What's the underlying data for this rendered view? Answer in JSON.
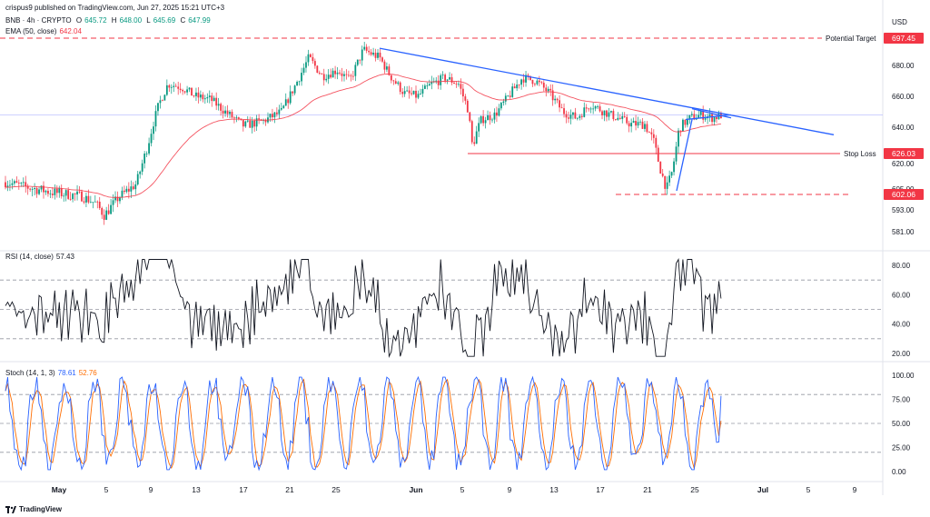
{
  "attribution": "crispus9 published on TradingView.com, Jun 27, 2025 15:21 UTC+3",
  "footer": {
    "brand": "TradingView"
  },
  "header": {
    "symbol": "BNB · 4h · CRYPTO",
    "o_label": "O",
    "o": "645.72",
    "h_label": "H",
    "h": "648.00",
    "l_label": "L",
    "l": "645.69",
    "c_label": "C",
    "c": "647.99",
    "ema_label": "EMA (50, close)",
    "ema_value": "642.04"
  },
  "rsi_header": {
    "label": "RSI (14, close)",
    "value": "57.43"
  },
  "stoch_header": {
    "label": "Stoch (14, 1, 3)",
    "k_value": "78.61",
    "d_value": "52.76"
  },
  "colors": {
    "up": "#089981",
    "down": "#f23645",
    "ema": "#f23645",
    "trendline": "#2962ff",
    "rsi": "#131722",
    "stoch_k": "#2962ff",
    "stoch_d": "#ff6d00",
    "level_red": "#f23645"
  },
  "chart_data": [
    {
      "type": "candlestick",
      "currency": "USD",
      "xlabels": [
        "May",
        "5",
        "9",
        "13",
        "17",
        "21",
        "25",
        "Jun",
        "5",
        "9",
        "13",
        "17",
        "21",
        "25",
        "Jul",
        "5",
        "9"
      ],
      "yticks": [
        "680.00",
        "660.00",
        "640.00",
        "620.00",
        "605.00",
        "593.00",
        "581.00"
      ],
      "levels": [
        {
          "label": "Potential Target",
          "value": "697.45",
          "style": "dashed"
        },
        {
          "label": "Stop Loss",
          "value": "626.03",
          "style": "solid"
        },
        {
          "label": "",
          "value": "602.06",
          "style": "dashed"
        }
      ],
      "current_price_line": 647.99,
      "ema_period": 50
    },
    {
      "type": "line",
      "name": "RSI (14, close)",
      "yticks": [
        "80.00",
        "60.00",
        "40.00",
        "20.00"
      ],
      "bands": [
        70,
        50,
        30
      ],
      "last": 57.43
    },
    {
      "type": "line",
      "name": "Stoch (14, 1, 3)",
      "yticks": [
        "100.00",
        "75.00",
        "50.00",
        "25.00",
        "0.00"
      ],
      "bands": [
        80,
        50,
        20
      ],
      "k_last": 78.61,
      "d_last": 52.76
    }
  ]
}
